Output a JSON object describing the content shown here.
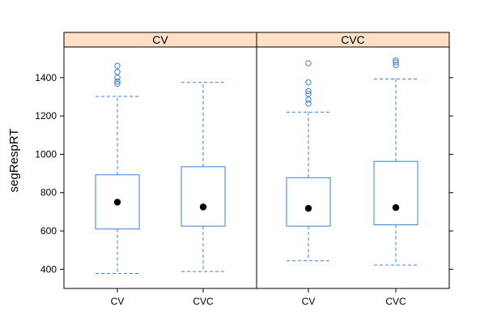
{
  "chart_data": {
    "type": "boxplot",
    "ylabel": "segRespRT",
    "yticks": [
      400,
      600,
      800,
      1000,
      1200,
      1400
    ],
    "ylim": [
      300,
      1560
    ],
    "grid": false,
    "colors": {
      "box": "#3b7fd8",
      "strip_fill": "#ffe0c6",
      "median_dot": "#000000"
    },
    "panels": [
      {
        "strip_label": "CV",
        "boxes": [
          {
            "category": "CV",
            "lower_whisker": 378,
            "q1": 610,
            "median": 750,
            "q3": 893,
            "upper_whisker": 1302,
            "outliers": [
              1368,
              1380,
              1400,
              1430,
              1462
            ]
          },
          {
            "category": "CVC",
            "lower_whisker": 388,
            "q1": 625,
            "median": 725,
            "q3": 935,
            "upper_whisker": 1375,
            "outliers": []
          }
        ]
      },
      {
        "strip_label": "CVC",
        "boxes": [
          {
            "category": "CV",
            "lower_whisker": 445,
            "q1": 625,
            "median": 718,
            "q3": 878,
            "upper_whisker": 1220,
            "outliers": [
              1265,
              1285,
              1315,
              1330,
              1375,
              1475
            ]
          },
          {
            "category": "CVC",
            "lower_whisker": 422,
            "q1": 632,
            "median": 722,
            "q3": 963,
            "upper_whisker": 1393,
            "outliers": [
              1465,
              1480,
              1490
            ]
          }
        ]
      }
    ]
  }
}
